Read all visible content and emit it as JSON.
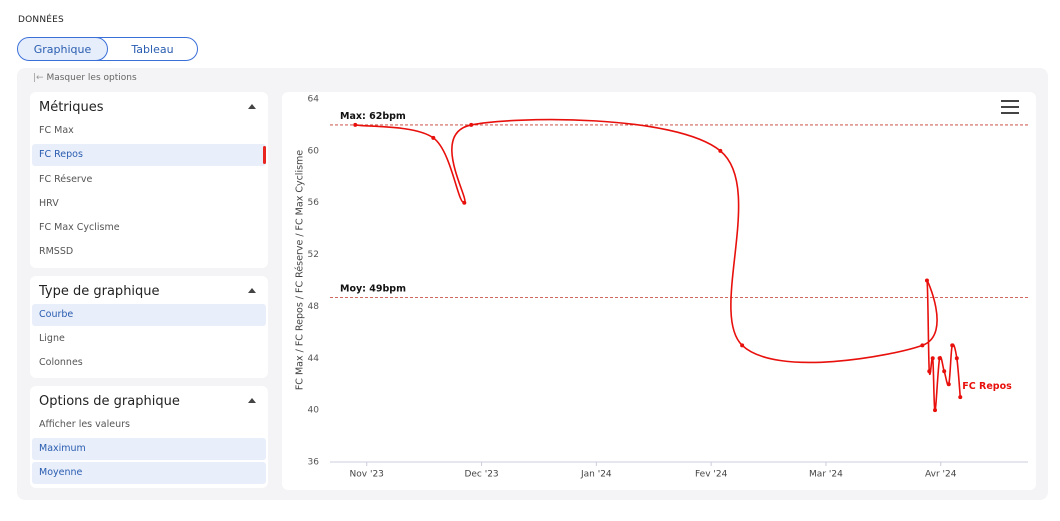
{
  "header": {
    "title": "DONNÉES",
    "tabs": [
      "Graphique",
      "Tableau"
    ]
  },
  "sidebar": {
    "toggle": "Masquer les options",
    "sections": [
      {
        "title": "Métriques",
        "items": [
          "FC Max",
          "FC Repos",
          "FC Réserve",
          "HRV",
          "FC Max Cyclisme",
          "RMSSD"
        ]
      },
      {
        "title": "Type de graphique",
        "items": [
          "Courbe",
          "Ligne",
          "Colonnes"
        ]
      },
      {
        "title": "Options de graphique",
        "items": [
          "Afficher les valeurs",
          "Maximum",
          "Moyenne"
        ]
      }
    ]
  },
  "chart_data": {
    "type": "line",
    "y_label": "FC Max / FC Repos / FC Réserve / FC Max Cyclisme",
    "x": [
      10.9,
      11.58,
      11.85,
      11.91,
      14.08,
      14.27,
      15.84,
      15.88,
      15.9,
      15.93,
      15.95,
      15.99,
      16.03,
      16.07,
      16.1,
      16.14,
      16.17
    ],
    "series": [
      {
        "name": "FC Repos",
        "color": "#e8100c",
        "values": [
          62,
          61,
          56,
          62,
          60,
          45,
          45,
          50,
          43,
          44,
          40,
          44,
          43,
          42,
          45,
          44,
          41
        ]
      }
    ],
    "xlim": [
      10.68,
      16.76
    ],
    "xticks": [
      {
        "value": 11,
        "label": "Nov '23"
      },
      {
        "value": 12,
        "label": "Dec '23"
      },
      {
        "value": 13,
        "label": "Jan '24"
      },
      {
        "value": 14,
        "label": "Fev '24"
      },
      {
        "value": 15,
        "label": "Mar '24"
      },
      {
        "value": 16,
        "label": "Avr '24"
      }
    ],
    "ylim": [
      36,
      64
    ],
    "yticks": [
      36,
      40,
      44,
      48,
      52,
      56,
      60,
      64
    ],
    "reference_lines": [
      {
        "label": "Max: 62bpm",
        "value": 62
      },
      {
        "label": "Moy: 49bpm",
        "value": 48.7
      }
    ],
    "grid": false
  }
}
